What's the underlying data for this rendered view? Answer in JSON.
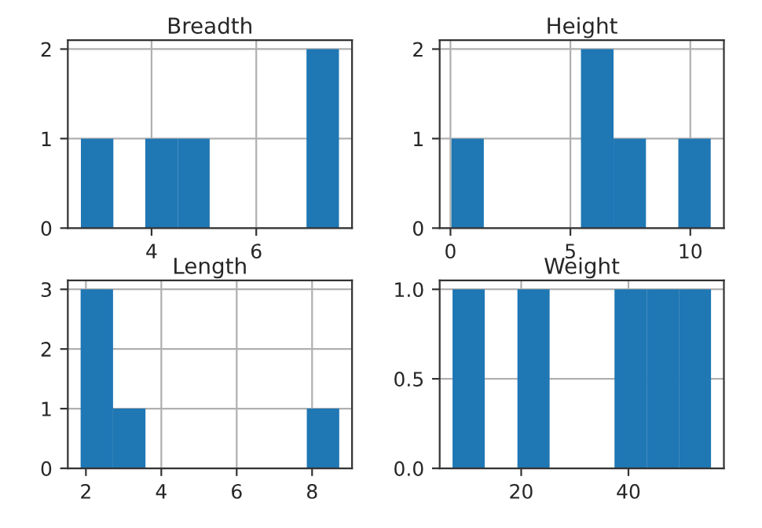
{
  "chart_data": [
    {
      "type": "histogram",
      "title": "Breadth",
      "bins": [
        2.65,
        3.27,
        3.88,
        4.5,
        5.11,
        6.96,
        7.58
      ],
      "series": [
        {
          "color": "#1f77b4",
          "values": [
            1,
            0,
            1,
            1,
            0,
            2
          ]
        }
      ],
      "xlim": [
        2.4,
        7.83
      ],
      "ylim": [
        0,
        2.1
      ],
      "xticks": [
        4,
        6
      ],
      "yticks": [
        0,
        1,
        2
      ],
      "grid": true
    },
    {
      "type": "histogram",
      "title": "Height",
      "bins": [
        0.04,
        1.39,
        2.74,
        4.09,
        5.44,
        6.8,
        8.15,
        9.5,
        10.85
      ],
      "series": [
        {
          "color": "#1f77b4",
          "values": [
            1,
            0,
            0,
            0,
            2,
            1,
            0,
            1
          ]
        }
      ],
      "xlim": [
        -0.45,
        11.4
      ],
      "ylim": [
        0,
        2.1
      ],
      "xticks": [
        0,
        5,
        10
      ],
      "yticks": [
        0,
        1,
        2
      ],
      "grid": true
    },
    {
      "type": "histogram",
      "title": "Length",
      "bins": [
        1.86,
        2.72,
        3.58,
        4.43,
        5.29,
        6.15,
        7.01,
        7.86,
        8.72
      ],
      "series": [
        {
          "color": "#1f77b4",
          "values": [
            3,
            1,
            0,
            0,
            0,
            0,
            0,
            1
          ]
        }
      ],
      "xlim": [
        1.52,
        9.06
      ],
      "ylim": [
        0,
        3.15
      ],
      "xticks": [
        2,
        4,
        6,
        8
      ],
      "yticks": [
        0,
        1,
        2,
        3
      ],
      "grid": true
    },
    {
      "type": "histogram",
      "title": "Weight",
      "bins": [
        7.2,
        13.2,
        19.3,
        25.3,
        37.4,
        43.4,
        49.4,
        55.4
      ],
      "series": [
        {
          "color": "#1f77b4",
          "values": [
            1,
            0,
            1,
            0,
            1,
            1,
            1
          ]
        }
      ],
      "xlim": [
        4.8,
        57.8
      ],
      "ylim": [
        0,
        1.05
      ],
      "xticks": [
        20,
        40
      ],
      "yticks": [
        {
          "value": 0,
          "label": "0.0"
        },
        {
          "value": 0.5,
          "label": "0.5"
        },
        {
          "value": 1,
          "label": "1.0"
        }
      ],
      "grid": true
    }
  ]
}
